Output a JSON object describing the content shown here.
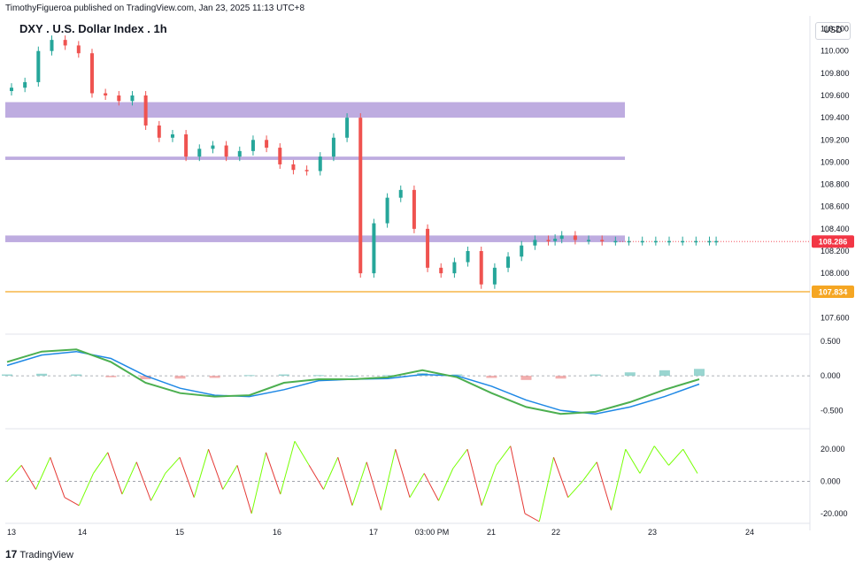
{
  "header": {
    "publisher": "TimothyFigueroa published on TradingView.com, Jan 23, 2025 11:13 UTC+8",
    "symbol": "DXY . U.S. Dollar Index . 1h",
    "currency": "USD"
  },
  "footer": {
    "brand": "TradingView",
    "logo_glyph": "17"
  },
  "colors": {
    "up": "#26a69a",
    "down": "#ef5350",
    "zone": "#b39ddb",
    "support": "#f5a623",
    "price_label": "#f23645",
    "support_label": "#f5a623",
    "wt_fast": "#4caf50",
    "wt_slow_up": "#1e88e5",
    "wt_down": "#b71c1c",
    "osc_up": "#76ff03",
    "osc_down": "#e53935"
  },
  "chart_data": [
    {
      "type": "candlestick",
      "title": "DXY . U.S. Dollar Index . 1h",
      "ylim": [
        107.5,
        110.3
      ],
      "yticks": [
        "110.200",
        "110.000",
        "109.800",
        "109.600",
        "109.400",
        "109.200",
        "109.000",
        "108.800",
        "108.600",
        "108.400",
        "108.200",
        "108.000",
        "107.600"
      ],
      "xticks": [
        "13",
        "14",
        "15",
        "16",
        "17",
        "03:00 PM",
        "21",
        "22",
        "23",
        "24"
      ],
      "zones": [
        {
          "name": "resistance-zone-upper",
          "from": 109.4,
          "to": 109.54
        },
        {
          "name": "resistance-zone-lower",
          "from": 109.02,
          "to": 109.05
        },
        {
          "name": "pivot-zone",
          "from": 108.28,
          "to": 108.34
        }
      ],
      "support_line": 107.834,
      "last_price": 108.286,
      "last_price_label": "108.286",
      "support_label": "107.834",
      "series": [
        {
          "name": "close",
          "x_days": [
            13.0,
            13.2,
            13.4,
            13.6,
            13.8,
            14.0,
            14.2,
            14.4,
            14.6,
            14.8,
            15.0,
            15.2,
            15.4,
            15.6,
            15.8,
            16.0,
            16.2,
            16.4,
            16.6,
            16.8,
            17.0,
            17.2,
            17.4,
            17.6,
            17.8,
            18.0,
            18.2,
            18.4,
            18.6,
            18.8,
            19.0,
            19.2,
            19.4,
            19.6,
            19.8,
            20.0,
            20.2,
            20.4,
            20.6,
            20.8,
            21.0,
            21.1,
            21.2,
            21.4,
            21.6,
            21.8,
            22.0,
            22.2,
            22.4,
            22.6,
            22.8,
            23.0,
            23.2,
            23.4,
            23.5
          ],
          "values": [
            109.67,
            109.72,
            110.0,
            110.1,
            110.05,
            109.98,
            109.62,
            109.6,
            109.55,
            109.6,
            109.33,
            109.22,
            109.25,
            109.05,
            109.12,
            109.15,
            109.05,
            109.1,
            109.2,
            109.13,
            108.98,
            108.93,
            108.92,
            109.05,
            109.22,
            109.4,
            108.0,
            108.45,
            108.68,
            108.75,
            108.4,
            108.05,
            108.0,
            108.1,
            108.2,
            107.9,
            108.05,
            108.15,
            108.25,
            108.3,
            108.29,
            108.31,
            108.34,
            108.3,
            108.3,
            108.29,
            108.29,
            108.29,
            108.29,
            108.29,
            108.29,
            108.29,
            108.29,
            108.29,
            108.29
          ]
        }
      ]
    },
    {
      "type": "line",
      "title": "",
      "ylim": [
        -0.7,
        0.55
      ],
      "yticks": [
        "0.500",
        "0.000",
        "-0.500"
      ],
      "series": [
        {
          "name": "fast",
          "values": [
            0.2,
            0.35,
            0.38,
            0.2,
            -0.1,
            -0.25,
            -0.3,
            -0.28,
            -0.1,
            -0.05,
            -0.05,
            -0.02,
            0.08,
            -0.02,
            -0.25,
            -0.45,
            -0.55,
            -0.52,
            -0.38,
            -0.2,
            -0.05
          ]
        },
        {
          "name": "slow",
          "values": [
            0.15,
            0.3,
            0.35,
            0.25,
            0.0,
            -0.18,
            -0.28,
            -0.3,
            -0.2,
            -0.07,
            -0.05,
            -0.04,
            0.02,
            0.0,
            -0.15,
            -0.35,
            -0.5,
            -0.55,
            -0.45,
            -0.3,
            -0.12
          ]
        },
        {
          "name": "hist",
          "values": [
            0.02,
            0.03,
            0.02,
            -0.02,
            -0.05,
            -0.04,
            -0.03,
            0.01,
            0.02,
            0.01,
            0.0,
            0.01,
            0.04,
            0.02,
            -0.03,
            -0.06,
            -0.04,
            0.02,
            0.05,
            0.08,
            0.1
          ]
        }
      ]
    },
    {
      "type": "line",
      "title": "",
      "ylim": [
        -25,
        30
      ],
      "yticks": [
        "20.000",
        "0.000",
        "-20.000"
      ],
      "series": [
        {
          "name": "oscillator",
          "values": [
            0,
            10,
            -5,
            15,
            -10,
            -15,
            5,
            18,
            -8,
            12,
            -12,
            5,
            15,
            -10,
            20,
            -5,
            10,
            -20,
            18,
            -8,
            25,
            10,
            -5,
            15,
            -15,
            12,
            -18,
            20,
            -10,
            5,
            -12,
            8,
            20,
            -15,
            10,
            22,
            -20,
            -25,
            15,
            -10,
            0,
            12,
            -18,
            20,
            5,
            22,
            10,
            20,
            5
          ]
        }
      ]
    }
  ]
}
